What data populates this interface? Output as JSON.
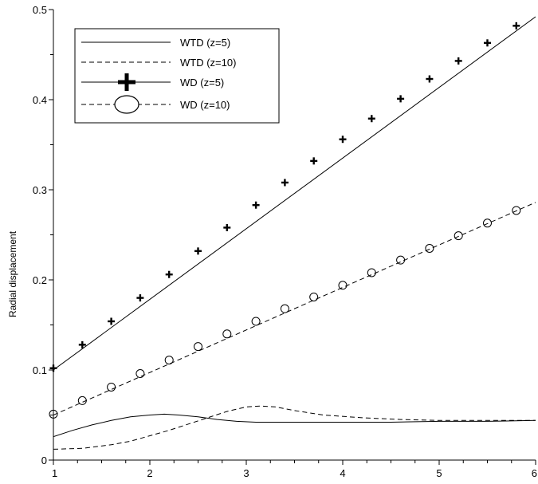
{
  "chart_data": {
    "type": "line",
    "title": "",
    "xlabel": "",
    "ylabel": "Radial displacement",
    "xlim": [
      1,
      6
    ],
    "ylim": [
      0,
      0.5
    ],
    "xticks": [
      1,
      2,
      3,
      4,
      5,
      6
    ],
    "xtick_labels": [
      "1",
      "2",
      "3",
      "4",
      "5",
      "6"
    ],
    "yticks": [
      0,
      0.1,
      0.2,
      0.3,
      0.4,
      0.5
    ],
    "ytick_labels": [
      "0",
      "0.1",
      "0.2",
      "0.3",
      "0.4",
      "0.5"
    ],
    "grid": false,
    "legend_position": "top-left",
    "series": [
      {
        "name": "WTD (z=5)",
        "style": "solid",
        "marker": "none",
        "x": [
          1.0,
          1.2,
          1.4,
          1.6,
          1.8,
          2.0,
          2.15,
          2.3,
          2.5,
          2.7,
          2.9,
          3.1,
          3.5,
          4.0,
          4.5,
          5.0,
          5.5,
          6.0
        ],
        "y": [
          0.026,
          0.033,
          0.039,
          0.044,
          0.048,
          0.05,
          0.051,
          0.05,
          0.048,
          0.045,
          0.043,
          0.042,
          0.042,
          0.042,
          0.042,
          0.043,
          0.043,
          0.044
        ]
      },
      {
        "name": "WTD (z=10)",
        "style": "dashed",
        "marker": "none",
        "x": [
          1.0,
          1.3,
          1.6,
          1.8,
          2.0,
          2.2,
          2.4,
          2.6,
          2.8,
          3.0,
          3.15,
          3.3,
          3.5,
          3.8,
          4.2,
          4.6,
          5.0,
          5.5,
          6.0
        ],
        "y": [
          0.012,
          0.013,
          0.017,
          0.021,
          0.027,
          0.033,
          0.04,
          0.047,
          0.054,
          0.059,
          0.06,
          0.059,
          0.055,
          0.05,
          0.047,
          0.045,
          0.044,
          0.044,
          0.044
        ]
      },
      {
        "name": "WD (z=5)",
        "style": "solid",
        "marker": "plus",
        "line_x": [
          1.0,
          6.0
        ],
        "line_y": [
          0.1,
          0.492
        ],
        "x": [
          1.0,
          1.3,
          1.6,
          1.9,
          2.2,
          2.5,
          2.8,
          3.1,
          3.4,
          3.7,
          4.0,
          4.3,
          4.6,
          4.9,
          5.2,
          5.5,
          5.8
        ],
        "y": [
          0.102,
          0.128,
          0.154,
          0.18,
          0.206,
          0.232,
          0.258,
          0.283,
          0.308,
          0.332,
          0.356,
          0.379,
          0.401,
          0.423,
          0.443,
          0.463,
          0.482
        ]
      },
      {
        "name": "WD (z=10)",
        "style": "dashed",
        "marker": "circle",
        "line_x": [
          1.0,
          6.0
        ],
        "line_y": [
          0.05,
          0.286
        ],
        "x": [
          1.0,
          1.3,
          1.6,
          1.9,
          2.2,
          2.5,
          2.8,
          3.1,
          3.4,
          3.7,
          4.0,
          4.3,
          4.6,
          4.9,
          5.2,
          5.5,
          5.8
        ],
        "y": [
          0.051,
          0.066,
          0.081,
          0.096,
          0.111,
          0.126,
          0.14,
          0.154,
          0.168,
          0.181,
          0.194,
          0.208,
          0.222,
          0.235,
          0.249,
          0.263,
          0.277
        ]
      }
    ]
  }
}
